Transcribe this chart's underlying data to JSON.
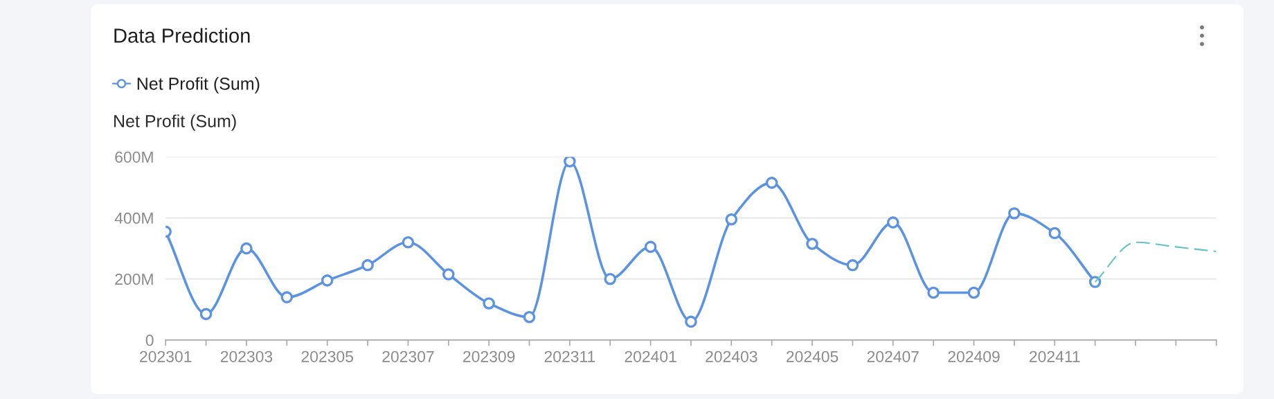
{
  "chart_data": {
    "type": "line",
    "title": "Data Prediction",
    "ylabel": "Net Profit (Sum)",
    "categories": [
      "202301",
      null,
      "202303",
      null,
      "202305",
      null,
      "202307",
      null,
      "202309",
      null,
      "202311",
      null,
      "202401",
      null,
      "202403",
      null,
      "202405",
      null,
      "202407",
      null,
      "202409",
      null,
      "202411",
      null,
      null,
      null,
      null
    ],
    "series": [
      {
        "name": "Net Profit (Sum)",
        "color": "#5b93e0",
        "marker": "circle",
        "line_style": "solid",
        "values": [
          355000000,
          85000000,
          300000000,
          140000000,
          195000000,
          245000000,
          320000000,
          215000000,
          120000000,
          75000000,
          585000000,
          200000000,
          305000000,
          60000000,
          395000000,
          515000000,
          315000000,
          245000000,
          385000000,
          155000000,
          155000000,
          415000000,
          350000000,
          190000000,
          null,
          null,
          null
        ]
      },
      {
        "color": "#62c3c6",
        "marker": "none",
        "line_style": "dashed",
        "values": [
          null,
          null,
          null,
          null,
          null,
          null,
          null,
          null,
          null,
          null,
          null,
          null,
          null,
          null,
          null,
          null,
          null,
          null,
          null,
          null,
          null,
          null,
          null,
          190000000,
          320000000,
          305000000,
          290000000
        ]
      }
    ],
    "ylim": [
      0,
      600000000
    ],
    "yticks": [
      0,
      {
        "value": 200000000,
        "label": "200M"
      },
      {
        "value": 400000000,
        "label": "400M"
      },
      {
        "value": 600000000,
        "label": "600M"
      }
    ],
    "grid": "y",
    "legend": "top left"
  }
}
